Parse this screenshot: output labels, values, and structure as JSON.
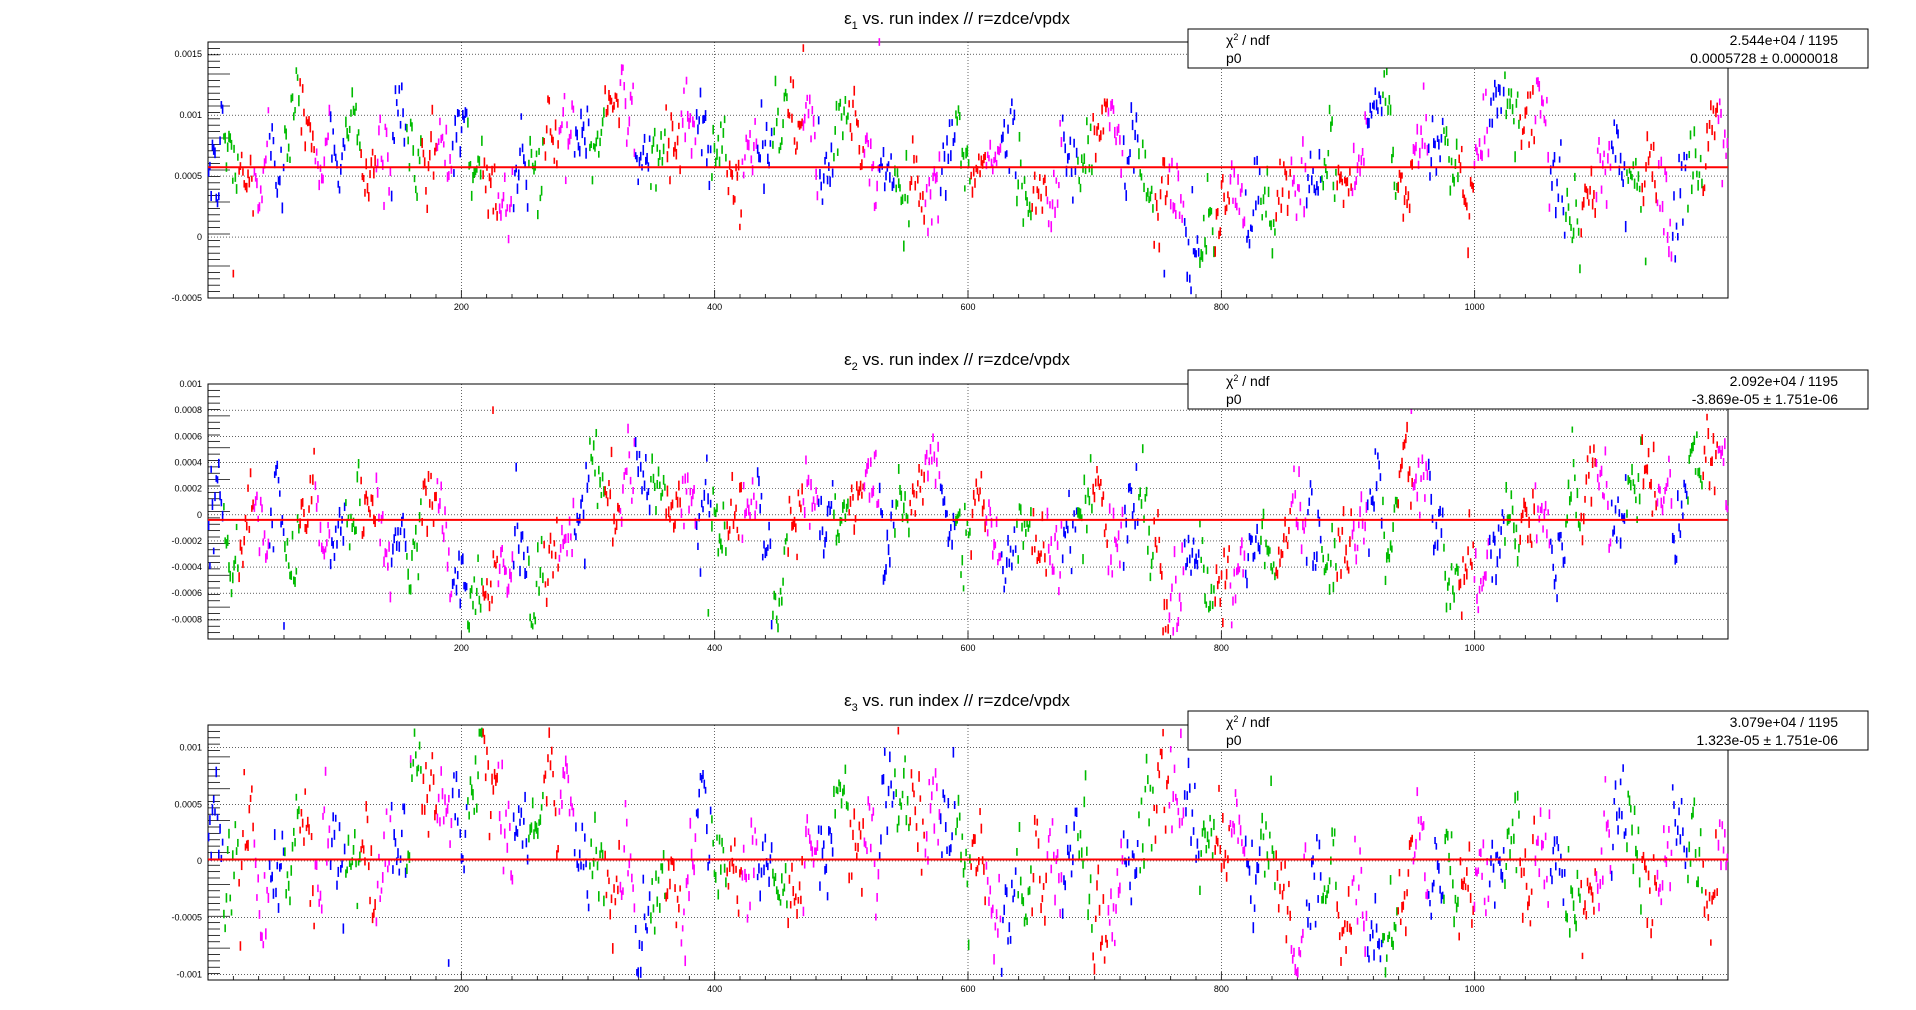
{
  "panels": [
    {
      "title_main": "ε",
      "title_sub": "1",
      "title_rest": " vs. run index // r=zdce/vpdx",
      "stats": {
        "row1_label_pre": "χ",
        "row1_label_sup": "2",
        "row1_label_post": " / ndf",
        "row1_value": "2.544e+04 / 1195",
        "row2_label": "p0",
        "row2_value": "0.0005728 ± 0.0000018"
      }
    },
    {
      "title_main": "ε",
      "title_sub": "2",
      "title_rest": " vs. run index // r=zdce/vpdx",
      "stats": {
        "row1_label_pre": "χ",
        "row1_label_sup": "2",
        "row1_label_post": " / ndf",
        "row1_value": "2.092e+04 / 1195",
        "row2_label": "p0",
        "row2_value": "-3.869e-05 ± 1.751e-06"
      }
    },
    {
      "title_main": "ε",
      "title_sub": "3",
      "title_rest": " vs. run index // r=zdce/vpdx",
      "stats": {
        "row1_label_pre": "χ",
        "row1_label_sup": "2",
        "row1_label_post": " / ndf",
        "row1_value": "3.079e+04 / 1195",
        "row2_label": "p0",
        "row2_value": "1.323e-05 ± 1.751e-06"
      }
    }
  ],
  "colors": {
    "fit_line": "#ff0000",
    "series": [
      "#0000ff",
      "#00bb00",
      "#ff0000",
      "#ff00ff"
    ],
    "grid": "#000000"
  },
  "chart_data": [
    {
      "type": "scatter",
      "title": "ε1 vs. run index // r=zdce/vpdx",
      "xlim": [
        0,
        1200
      ],
      "ylim": [
        -0.0005,
        0.0016
      ],
      "x_ticks": [
        200,
        400,
        600,
        800,
        1000
      ],
      "x_tick_labels": [
        "200",
        "400",
        "600",
        "800",
        "1000"
      ],
      "y_ticks": [
        -0.0005,
        0,
        0.0005,
        0.001,
        0.0015
      ],
      "y_tick_labels": [
        "-0.0005",
        "0",
        "0.0005",
        "0.001",
        "0.0015"
      ],
      "grid": true,
      "fit_constant": 0.0005728,
      "n_points": 1196,
      "series_colors_cycle": [
        "blue",
        "green",
        "red",
        "magenta"
      ],
      "typical_value_range": [
        0.0,
        0.0012
      ],
      "noted_points": [
        {
          "x": 470,
          "y": 0.00155
        },
        {
          "x": 530,
          "y": 0.0016
        },
        {
          "x": 755,
          "y": -0.0003
        },
        {
          "x": 1135,
          "y": -0.0002
        },
        {
          "x": 20,
          "y": -0.0003
        }
      ]
    },
    {
      "type": "scatter",
      "title": "ε2 vs. run index // r=zdce/vpdx",
      "xlim": [
        0,
        1200
      ],
      "ylim": [
        -0.00095,
        0.001
      ],
      "x_ticks": [
        200,
        400,
        600,
        800,
        1000
      ],
      "x_tick_labels": [
        "200",
        "400",
        "600",
        "800",
        "1000"
      ],
      "y_ticks": [
        -0.0008,
        -0.0006,
        -0.0004,
        -0.0002,
        0,
        0.0002,
        0.0004,
        0.0006,
        0.0008,
        0.001
      ],
      "y_tick_labels": [
        "-0.0008",
        "-0.0006",
        "-0.0004",
        "-0.0002",
        "0",
        "0.0002",
        "0.0004",
        "0.0006",
        "0.0008",
        "0.001"
      ],
      "grid": true,
      "fit_constant": -3.869e-05,
      "n_points": 1196,
      "series_colors_cycle": [
        "blue",
        "green",
        "red",
        "magenta"
      ],
      "typical_value_range": [
        -0.0006,
        0.0005
      ],
      "noted_points": [
        {
          "x": 225,
          "y": 0.0008
        },
        {
          "x": 950,
          "y": 0.0008
        },
        {
          "x": 60,
          "y": -0.00085
        },
        {
          "x": 395,
          "y": -0.00075
        }
      ]
    },
    {
      "type": "scatter",
      "title": "ε3 vs. run index // r=zdce/vpdx",
      "xlim": [
        0,
        1200
      ],
      "ylim": [
        -0.00105,
        0.0012
      ],
      "x_ticks": [
        200,
        400,
        600,
        800,
        1000
      ],
      "x_tick_labels": [
        "200",
        "400",
        "600",
        "800",
        "1000"
      ],
      "y_ticks": [
        -0.001,
        -0.0005,
        0,
        0.0005,
        0.001
      ],
      "y_tick_labels": [
        "-0.001",
        "-0.0005",
        "0",
        "0.0005",
        "0.001"
      ],
      "grid": true,
      "fit_constant": 1.323e-05,
      "n_points": 1196,
      "series_colors_cycle": [
        "blue",
        "green",
        "red",
        "magenta"
      ],
      "typical_value_range": [
        -0.0008,
        0.0008
      ],
      "noted_points": [
        {
          "x": 545,
          "y": 0.00115
        },
        {
          "x": 160,
          "y": 0.0009
        },
        {
          "x": 190,
          "y": -0.0009
        }
      ]
    }
  ]
}
